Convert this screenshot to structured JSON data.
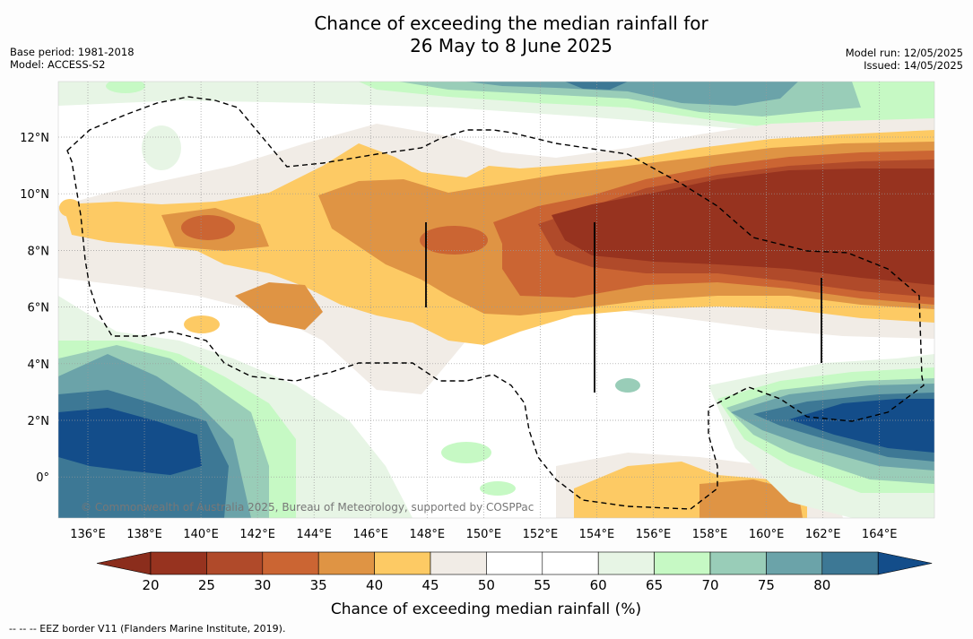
{
  "title": {
    "line1": "Chance of exceeding the median rainfall for",
    "line2": "26 May to 8 June 2025"
  },
  "meta_left": {
    "base_period": "Base period: 1981-2018",
    "model": "Model: ACCESS-S2"
  },
  "meta_right": {
    "model_run": "Model run: 12/05/2025",
    "issued": "Issued: 14/05/2025"
  },
  "map": {
    "x_ticks": [
      "136°E",
      "138°E",
      "140°E",
      "142°E",
      "144°E",
      "146°E",
      "148°E",
      "150°E",
      "152°E",
      "154°E",
      "156°E",
      "158°E",
      "160°E",
      "162°E",
      "164°E"
    ],
    "y_ticks": [
      "12°N",
      "10°N",
      "8°N",
      "6°N",
      "4°N",
      "2°N",
      "0°"
    ],
    "copyright": "© Commonwealth of Australia 2025, Bureau of Meteorology, supported by COSPPac"
  },
  "colorbar": {
    "title": "Chance of exceeding median rainfall (%)",
    "labels": [
      "20",
      "25",
      "30",
      "35",
      "40",
      "45",
      "50",
      "55",
      "60",
      "65",
      "70",
      "75",
      "80"
    ],
    "colors": [
      "#97331f",
      "#b04a2a",
      "#cb6533",
      "#df9444",
      "#fdca64",
      "#f1ece6",
      "#ffffff",
      "#ffffff",
      "#e7f5e5",
      "#c6f9c4",
      "#99cdb8",
      "#6ba3a9",
      "#3d7895"
    ],
    "under_color": "#8b2d1c",
    "over_color": "#134d8a"
  },
  "footer": {
    "legend": "--  --  -- EEZ border V11 (Flanders Marine Institute, 2019)."
  }
}
